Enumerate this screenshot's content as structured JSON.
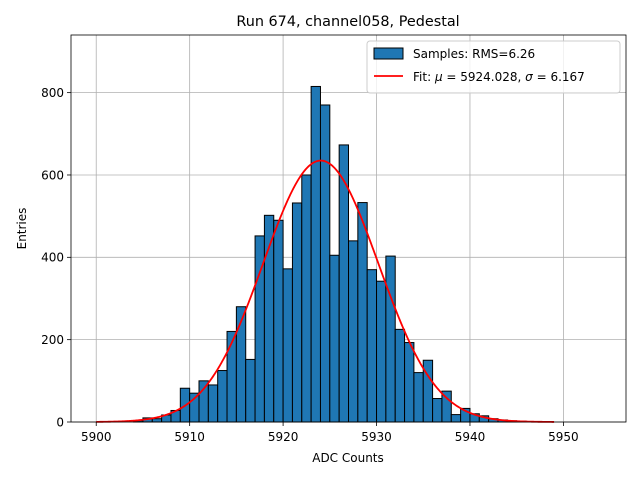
{
  "chart_data": {
    "type": "bar",
    "title": "Run 674, channel058, Pedestal",
    "xlabel": "ADC Counts",
    "ylabel": "Entries",
    "xlim": [
      5897.3,
      5956.7
    ],
    "ylim": [
      0,
      940
    ],
    "xticks": [
      5900,
      5910,
      5920,
      5930,
      5940,
      5950
    ],
    "yticks": [
      0,
      200,
      400,
      600,
      800
    ],
    "grid": true,
    "legend_position": "top-right",
    "bin_width": 1,
    "bins": [
      [
        5900,
        0
      ],
      [
        5901,
        0
      ],
      [
        5902,
        0
      ],
      [
        5903,
        0
      ],
      [
        5904,
        3
      ],
      [
        5905,
        10
      ],
      [
        5906,
        8
      ],
      [
        5907,
        17
      ],
      [
        5908,
        28
      ],
      [
        5909,
        82
      ],
      [
        5910,
        70
      ],
      [
        5911,
        100
      ],
      [
        5912,
        90
      ],
      [
        5913,
        125
      ],
      [
        5914,
        220
      ],
      [
        5915,
        280
      ],
      [
        5916,
        152
      ],
      [
        5917,
        452
      ],
      [
        5918,
        502
      ],
      [
        5919,
        490
      ],
      [
        5920,
        372
      ],
      [
        5921,
        532
      ],
      [
        5922,
        600
      ],
      [
        5923,
        815
      ],
      [
        5924,
        770
      ],
      [
        5925,
        405
      ],
      [
        5926,
        673
      ],
      [
        5927,
        440
      ],
      [
        5928,
        533
      ],
      [
        5929,
        370
      ],
      [
        5930,
        342
      ],
      [
        5931,
        403
      ],
      [
        5932,
        225
      ],
      [
        5933,
        193
      ],
      [
        5934,
        120
      ],
      [
        5935,
        150
      ],
      [
        5936,
        57
      ],
      [
        5937,
        75
      ],
      [
        5938,
        18
      ],
      [
        5939,
        33
      ],
      [
        5940,
        20
      ],
      [
        5941,
        15
      ],
      [
        5942,
        8
      ],
      [
        5943,
        5
      ],
      [
        5944,
        3
      ],
      [
        5945,
        2
      ],
      [
        5946,
        0
      ],
      [
        5947,
        0
      ],
      [
        5948,
        0
      ],
      [
        5949,
        0
      ]
    ],
    "series": [
      {
        "name": "Samples: RMS=6.26",
        "color": "#1f77b4",
        "edge_color": "#000000"
      },
      {
        "name_prefix": "Fit: ",
        "mu_symbol": "μ",
        "mu_text": " = 5924.028, ",
        "sigma_symbol": "σ",
        "sigma_text": " = 6.167",
        "color": "#ff0000",
        "mu": 5924.028,
        "sigma": 6.167,
        "amplitude": 635,
        "x_range": [
          5900,
          5949
        ]
      }
    ]
  }
}
